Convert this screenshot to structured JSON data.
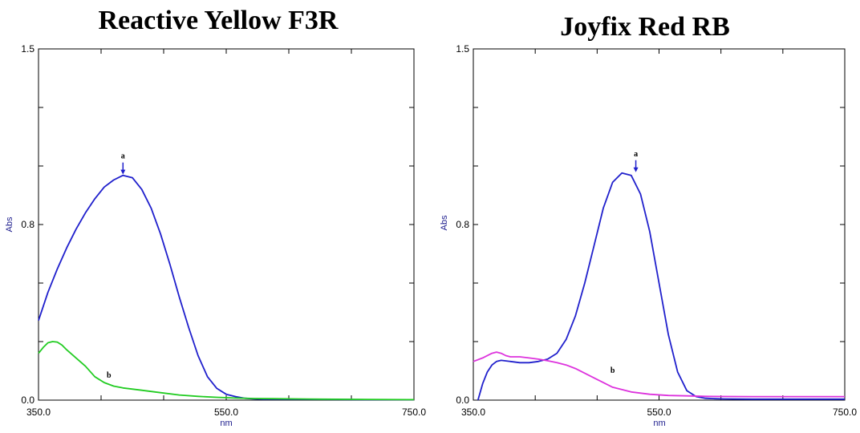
{
  "chart_data": [
    {
      "type": "line",
      "title": "Reactive Yellow F3R",
      "xlabel": "nm",
      "ylabel": "Abs",
      "xlim": [
        350.0,
        750.0
      ],
      "ylim": [
        0.0,
        1.5
      ],
      "x_ticks": [
        "350.0",
        "550.0",
        "750.0"
      ],
      "y_ticks": [
        "0.0",
        "0.8",
        "1.5"
      ],
      "series": [
        {
          "name": "a",
          "color": "#1f1fcc",
          "x": [
            350,
            360,
            370,
            380,
            390,
            400,
            410,
            420,
            430,
            440,
            450,
            460,
            470,
            480,
            490,
            500,
            510,
            520,
            530,
            540,
            550,
            560,
            570,
            580,
            590,
            600,
            650,
            700,
            750
          ],
          "y": [
            0.34,
            0.46,
            0.56,
            0.65,
            0.73,
            0.8,
            0.86,
            0.91,
            0.94,
            0.96,
            0.95,
            0.9,
            0.82,
            0.71,
            0.58,
            0.44,
            0.31,
            0.19,
            0.1,
            0.05,
            0.025,
            0.015,
            0.008,
            0.005,
            0.004,
            0.004,
            0.003,
            0.002,
            0.002
          ]
        },
        {
          "name": "b",
          "color": "#22cc22",
          "x": [
            350,
            355,
            360,
            365,
            370,
            375,
            380,
            390,
            400,
            410,
            420,
            430,
            440,
            460,
            480,
            500,
            520,
            540,
            560,
            580,
            600,
            650,
            700,
            750
          ],
          "y": [
            0.2,
            0.225,
            0.245,
            0.25,
            0.248,
            0.235,
            0.215,
            0.18,
            0.145,
            0.1,
            0.075,
            0.06,
            0.052,
            0.042,
            0.032,
            0.022,
            0.016,
            0.012,
            0.009,
            0.007,
            0.006,
            0.004,
            0.003,
            0.002
          ]
        }
      ],
      "annotations": [
        {
          "text": "a",
          "x": 440,
          "y": 0.96
        },
        {
          "text": "b",
          "x": 425,
          "y": 0.11
        }
      ]
    },
    {
      "type": "line",
      "title": "Joyfix Red RB",
      "xlabel": "nm",
      "ylabel": "Abs",
      "xlim": [
        350.0,
        750.0
      ],
      "ylim": [
        0.0,
        1.5
      ],
      "x_ticks": [
        "350.0",
        "550.0",
        "750.0"
      ],
      "y_ticks": [
        "0.0",
        "0.8",
        "1.5"
      ],
      "series": [
        {
          "name": "a",
          "color": "#2020cc",
          "x": [
            355,
            360,
            365,
            370,
            375,
            380,
            390,
            400,
            410,
            420,
            430,
            440,
            450,
            460,
            470,
            480,
            490,
            500,
            510,
            520,
            530,
            540,
            550,
            560,
            570,
            580,
            590,
            600,
            610,
            620,
            650,
            700,
            750
          ],
          "y": [
            0.0,
            0.07,
            0.12,
            0.15,
            0.165,
            0.17,
            0.165,
            0.16,
            0.16,
            0.165,
            0.175,
            0.2,
            0.26,
            0.36,
            0.5,
            0.66,
            0.82,
            0.93,
            0.97,
            0.96,
            0.88,
            0.72,
            0.5,
            0.28,
            0.12,
            0.04,
            0.015,
            0.008,
            0.006,
            0.005,
            0.004,
            0.004,
            0.004
          ]
        },
        {
          "name": "b",
          "color": "#dd33dd",
          "x": [
            350,
            360,
            370,
            375,
            380,
            385,
            390,
            400,
            410,
            420,
            430,
            440,
            450,
            460,
            470,
            480,
            490,
            500,
            520,
            540,
            560,
            580,
            600,
            650,
            700,
            750
          ],
          "y": [
            0.165,
            0.18,
            0.2,
            0.205,
            0.2,
            0.19,
            0.185,
            0.185,
            0.18,
            0.175,
            0.168,
            0.16,
            0.15,
            0.135,
            0.115,
            0.095,
            0.075,
            0.055,
            0.035,
            0.025,
            0.02,
            0.018,
            0.016,
            0.015,
            0.015,
            0.015
          ]
        }
      ],
      "annotations": [
        {
          "text": "a",
          "x": 525,
          "y": 0.97
        },
        {
          "text": "b",
          "x": 500,
          "y": 0.13
        }
      ]
    }
  ]
}
